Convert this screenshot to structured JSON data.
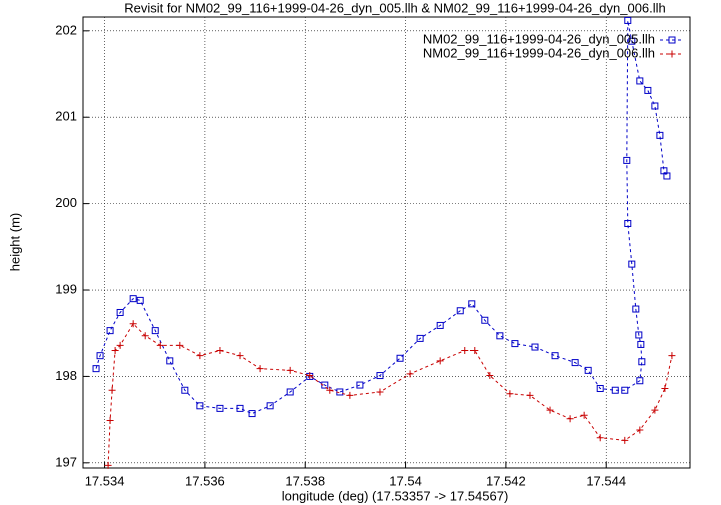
{
  "chart_data": {
    "type": "line",
    "title": "Revisit for NM02_99_116+1999-04-26_dyn_005.llh & NM02_99_116+1999-04-26_dyn_006.llh",
    "x_label": "longitude (deg) (17.53357 -> 17.54567)",
    "y_label": "height (m)",
    "xlim": [
      17.53357,
      17.54567
    ],
    "ylim": [
      196.94,
      202.16
    ],
    "xticks": [
      17.534,
      17.536,
      17.538,
      17.54,
      17.542,
      17.544
    ],
    "yticks": [
      197,
      198,
      199,
      200,
      201,
      202
    ],
    "grid": true,
    "legend": "top-right",
    "series": [
      {
        "name": "NM02_99_116+1999-04-26_dyn_005.llh",
        "color": "#0000c8",
        "marker": "square",
        "x": [
          17.53383,
          17.53391,
          17.53411,
          17.53431,
          17.53457,
          17.53471,
          17.53501,
          17.5353,
          17.5356,
          17.5359,
          17.5363,
          17.5367,
          17.53694,
          17.5373,
          17.5377,
          17.53809,
          17.53839,
          17.53869,
          17.53909,
          17.53949,
          17.53989,
          17.54029,
          17.54069,
          17.54109,
          17.54132,
          17.54158,
          17.54188,
          17.54218,
          17.54258,
          17.54298,
          17.54338,
          17.54364,
          17.54388,
          17.54418,
          17.54437,
          17.54467,
          17.54471,
          17.54469,
          17.54465,
          17.54459,
          17.54451,
          17.54443,
          17.54441,
          17.54443,
          17.54451,
          17.54467,
          17.54483,
          17.54497,
          17.54507,
          17.54515,
          17.54521
        ],
        "values": [
          198.09,
          198.24,
          198.53,
          198.74,
          198.9,
          198.88,
          198.53,
          198.18,
          197.84,
          197.66,
          197.63,
          197.63,
          197.57,
          197.66,
          197.82,
          198.0,
          197.9,
          197.82,
          197.9,
          198.01,
          198.21,
          198.44,
          198.59,
          198.76,
          198.84,
          198.65,
          198.47,
          198.38,
          198.34,
          198.24,
          198.16,
          198.07,
          197.86,
          197.84,
          197.84,
          197.95,
          198.17,
          198.37,
          198.48,
          198.78,
          199.3,
          199.77,
          200.5,
          202.12,
          201.88,
          201.42,
          201.31,
          201.13,
          200.79,
          200.38,
          200.32
        ]
      },
      {
        "name": "NM02_99_116+1999-04-26_dyn_006.llh",
        "color": "#c80000",
        "marker": "plus",
        "x": [
          17.53407,
          17.53411,
          17.53415,
          17.53421,
          17.53431,
          17.53457,
          17.53481,
          17.53511,
          17.5355,
          17.5359,
          17.5363,
          17.5367,
          17.5371,
          17.5377,
          17.53809,
          17.53849,
          17.53889,
          17.53949,
          17.54009,
          17.54069,
          17.54118,
          17.54138,
          17.54168,
          17.54208,
          17.54248,
          17.54288,
          17.54328,
          17.54356,
          17.54388,
          17.54437,
          17.54467,
          17.54497,
          17.54517,
          17.54531
        ],
        "values": [
          196.97,
          197.49,
          197.84,
          198.3,
          198.36,
          198.61,
          198.47,
          198.36,
          198.36,
          198.24,
          198.3,
          198.24,
          198.09,
          198.07,
          198.01,
          197.84,
          197.78,
          197.82,
          198.03,
          198.18,
          198.3,
          198.3,
          198.01,
          197.8,
          197.78,
          197.61,
          197.51,
          197.55,
          197.29,
          197.26,
          197.38,
          197.61,
          197.86,
          198.24
        ]
      }
    ]
  }
}
